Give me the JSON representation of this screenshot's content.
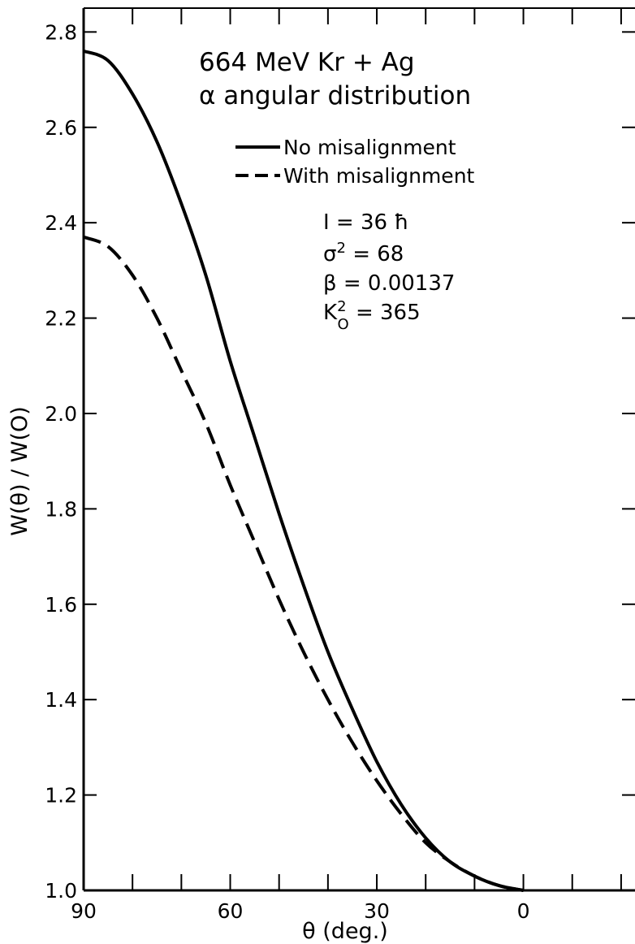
{
  "chart_data": {
    "type": "line",
    "title_lines": [
      "664 MeV  Kr + Ag",
      "α  angular  distribution"
    ],
    "xlabel": "θ  (deg.)",
    "ylabel": "W(θ) / W(O)",
    "xlim": [
      90,
      -25
    ],
    "ylim": [
      1.0,
      2.85
    ],
    "x_reversed": true,
    "x_ticks": [
      90,
      60,
      30,
      0
    ],
    "x_tick_labels": [
      "90",
      "60",
      "30",
      "0"
    ],
    "y_ticks": [
      1.0,
      1.2,
      1.4,
      1.6,
      1.8,
      2.0,
      2.2,
      2.4,
      2.6,
      2.8
    ],
    "y_tick_labels": [
      "1.0",
      "1.2",
      "1.4",
      "1.6",
      "1.8",
      "2.0",
      "2.2",
      "2.4",
      "2.6",
      "2.8"
    ],
    "x_minor_ticks": [
      80,
      70,
      50,
      40,
      20,
      10,
      -10,
      -20
    ],
    "grid": false,
    "legend_position": "top-right",
    "series": [
      {
        "name": "No misalignment",
        "style": "solid",
        "x": [
          90,
          85,
          80,
          75,
          70,
          65,
          60,
          55,
          50,
          45,
          40,
          35,
          30,
          25,
          20,
          15,
          10,
          5,
          0
        ],
        "y": [
          2.76,
          2.74,
          2.67,
          2.57,
          2.44,
          2.29,
          2.11,
          1.95,
          1.79,
          1.64,
          1.5,
          1.38,
          1.27,
          1.18,
          1.11,
          1.06,
          1.03,
          1.01,
          1.0
        ]
      },
      {
        "name": "With misalignment",
        "style": "dashed",
        "x": [
          90,
          85,
          80,
          75,
          70,
          65,
          60,
          55,
          50,
          45,
          40,
          35,
          30,
          25,
          20,
          15,
          10,
          5,
          0
        ],
        "y": [
          2.37,
          2.35,
          2.29,
          2.2,
          2.09,
          1.98,
          1.85,
          1.73,
          1.61,
          1.5,
          1.4,
          1.31,
          1.23,
          1.16,
          1.1,
          1.06,
          1.03,
          1.01,
          1.0
        ]
      }
    ],
    "parameters": [
      {
        "symbol": "I",
        "sup": "",
        "sub": "",
        "value": " = 36 ħ"
      },
      {
        "symbol": "σ",
        "sup": "2",
        "sub": "",
        "value": " = 68"
      },
      {
        "symbol": "β",
        "sup": "",
        "sub": "",
        "value": " = 0.00137"
      },
      {
        "symbol": "K",
        "sup": "2",
        "sub": "O",
        "value": " = 365"
      }
    ]
  }
}
